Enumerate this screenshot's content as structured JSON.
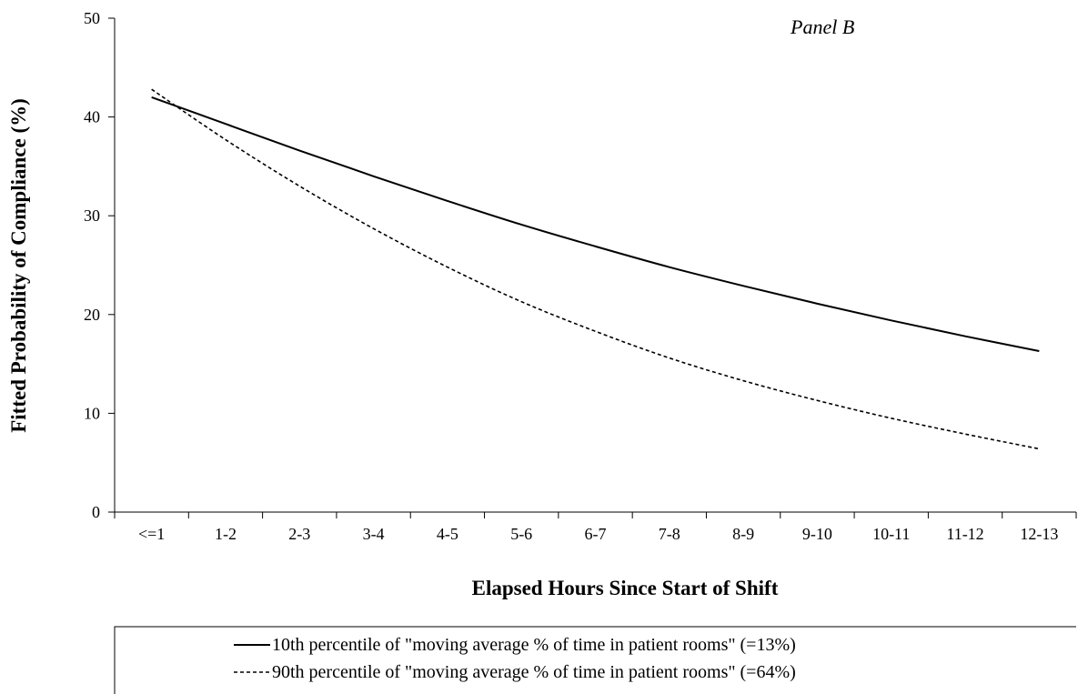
{
  "chart_data": {
    "type": "line",
    "title": "",
    "annotation": "Panel B",
    "xlabel": "Elapsed Hours Since Start of Shift",
    "ylabel": "Fitted Probability of Compliance (%)",
    "ylim": [
      0,
      50
    ],
    "yticks": [
      0,
      10,
      20,
      30,
      40,
      50
    ],
    "grid": false,
    "legend_position": "bottom",
    "categories": [
      "<=1",
      "1-2",
      "2-3",
      "3-4",
      "4-5",
      "5-6",
      "6-7",
      "7-8",
      "8-9",
      "9-10",
      "10-11",
      "11-12",
      "12-13"
    ],
    "series": [
      {
        "name": "10th percentile of \"moving average % of time in patient rooms\" (=13%)",
        "style": "solid",
        "color": "#000000",
        "values": [
          42.0,
          39.3,
          36.6,
          34.0,
          31.5,
          29.1,
          26.9,
          24.8,
          22.9,
          21.1,
          19.4,
          17.8,
          16.3
        ]
      },
      {
        "name": "90th percentile of \"moving average % of time in patient rooms\" (=64%)",
        "style": "dashed",
        "color": "#000000",
        "values": [
          42.8,
          37.7,
          33.0,
          28.7,
          24.8,
          21.3,
          18.3,
          15.6,
          13.3,
          11.3,
          9.5,
          7.9,
          6.4
        ]
      }
    ]
  }
}
